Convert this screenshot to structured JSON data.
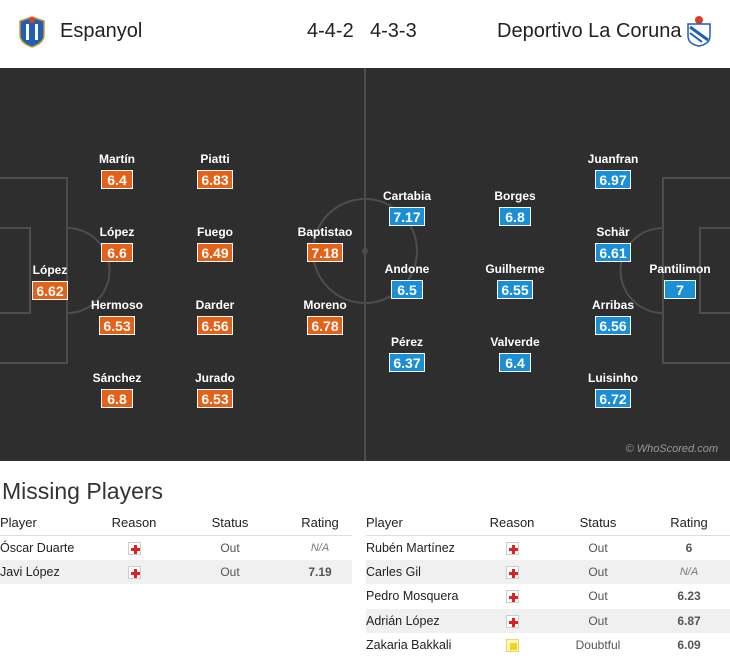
{
  "header": {
    "home_team": "Espanyol",
    "away_team": "Deportivo La Coruna",
    "home_formation": "4-4-2",
    "away_formation": "4-3-3",
    "home_crest_icon": "espanyol-crest-icon",
    "away_crest_icon": "deportivo-crest-icon"
  },
  "colors": {
    "home_rating": "#e46119",
    "away_rating": "#1b8fd6",
    "pitch": "#2e2e2e"
  },
  "pitch": {
    "watermark": "© WhoScored.com",
    "home_players": [
      {
        "name": "López",
        "rating": "6.62"
      },
      {
        "name": "Martín",
        "rating": "6.4"
      },
      {
        "name": "López",
        "rating": "6.6"
      },
      {
        "name": "Hermoso",
        "rating": "6.53"
      },
      {
        "name": "Sánchez",
        "rating": "6.8"
      },
      {
        "name": "Piatti",
        "rating": "6.83"
      },
      {
        "name": "Fuego",
        "rating": "6.49"
      },
      {
        "name": "Darder",
        "rating": "6.56"
      },
      {
        "name": "Jurado",
        "rating": "6.53"
      },
      {
        "name": "Baptistao",
        "rating": "7.18"
      },
      {
        "name": "Moreno",
        "rating": "6.78"
      }
    ],
    "away_players": [
      {
        "name": "Cartabia",
        "rating": "7.17"
      },
      {
        "name": "Andone",
        "rating": "6.5"
      },
      {
        "name": "Pérez",
        "rating": "6.37"
      },
      {
        "name": "Borges",
        "rating": "6.8"
      },
      {
        "name": "Guilherme",
        "rating": "6.55"
      },
      {
        "name": "Valverde",
        "rating": "6.4"
      },
      {
        "name": "Juanfran",
        "rating": "6.97"
      },
      {
        "name": "Schär",
        "rating": "6.61"
      },
      {
        "name": "Arribas",
        "rating": "6.56"
      },
      {
        "name": "Luisinho",
        "rating": "6.72"
      },
      {
        "name": "Pantilimon",
        "rating": "7"
      }
    ]
  },
  "missing": {
    "title": "Missing Players",
    "columns": {
      "player": "Player",
      "reason": "Reason",
      "status": "Status",
      "rating": "Rating"
    },
    "home": [
      {
        "player": "Óscar Duarte",
        "reason": "injury-icon",
        "status": "Out",
        "rating": "N/A"
      },
      {
        "player": "Javi López",
        "reason": "injury-icon",
        "status": "Out",
        "rating": "7.19"
      }
    ],
    "away": [
      {
        "player": "Rubén Martínez",
        "reason": "injury-icon",
        "status": "Out",
        "rating": "6"
      },
      {
        "player": "Carles Gil",
        "reason": "injury-icon",
        "status": "Out",
        "rating": "N/A"
      },
      {
        "player": "Pedro Mosquera",
        "reason": "injury-icon",
        "status": "Out",
        "rating": "6.23"
      },
      {
        "player": "Adrián López",
        "reason": "injury-icon",
        "status": "Out",
        "rating": "6.87"
      },
      {
        "player": "Zakaria Bakkali",
        "reason": "doubtful-icon",
        "status": "Doubtful",
        "rating": "6.09"
      }
    ]
  }
}
